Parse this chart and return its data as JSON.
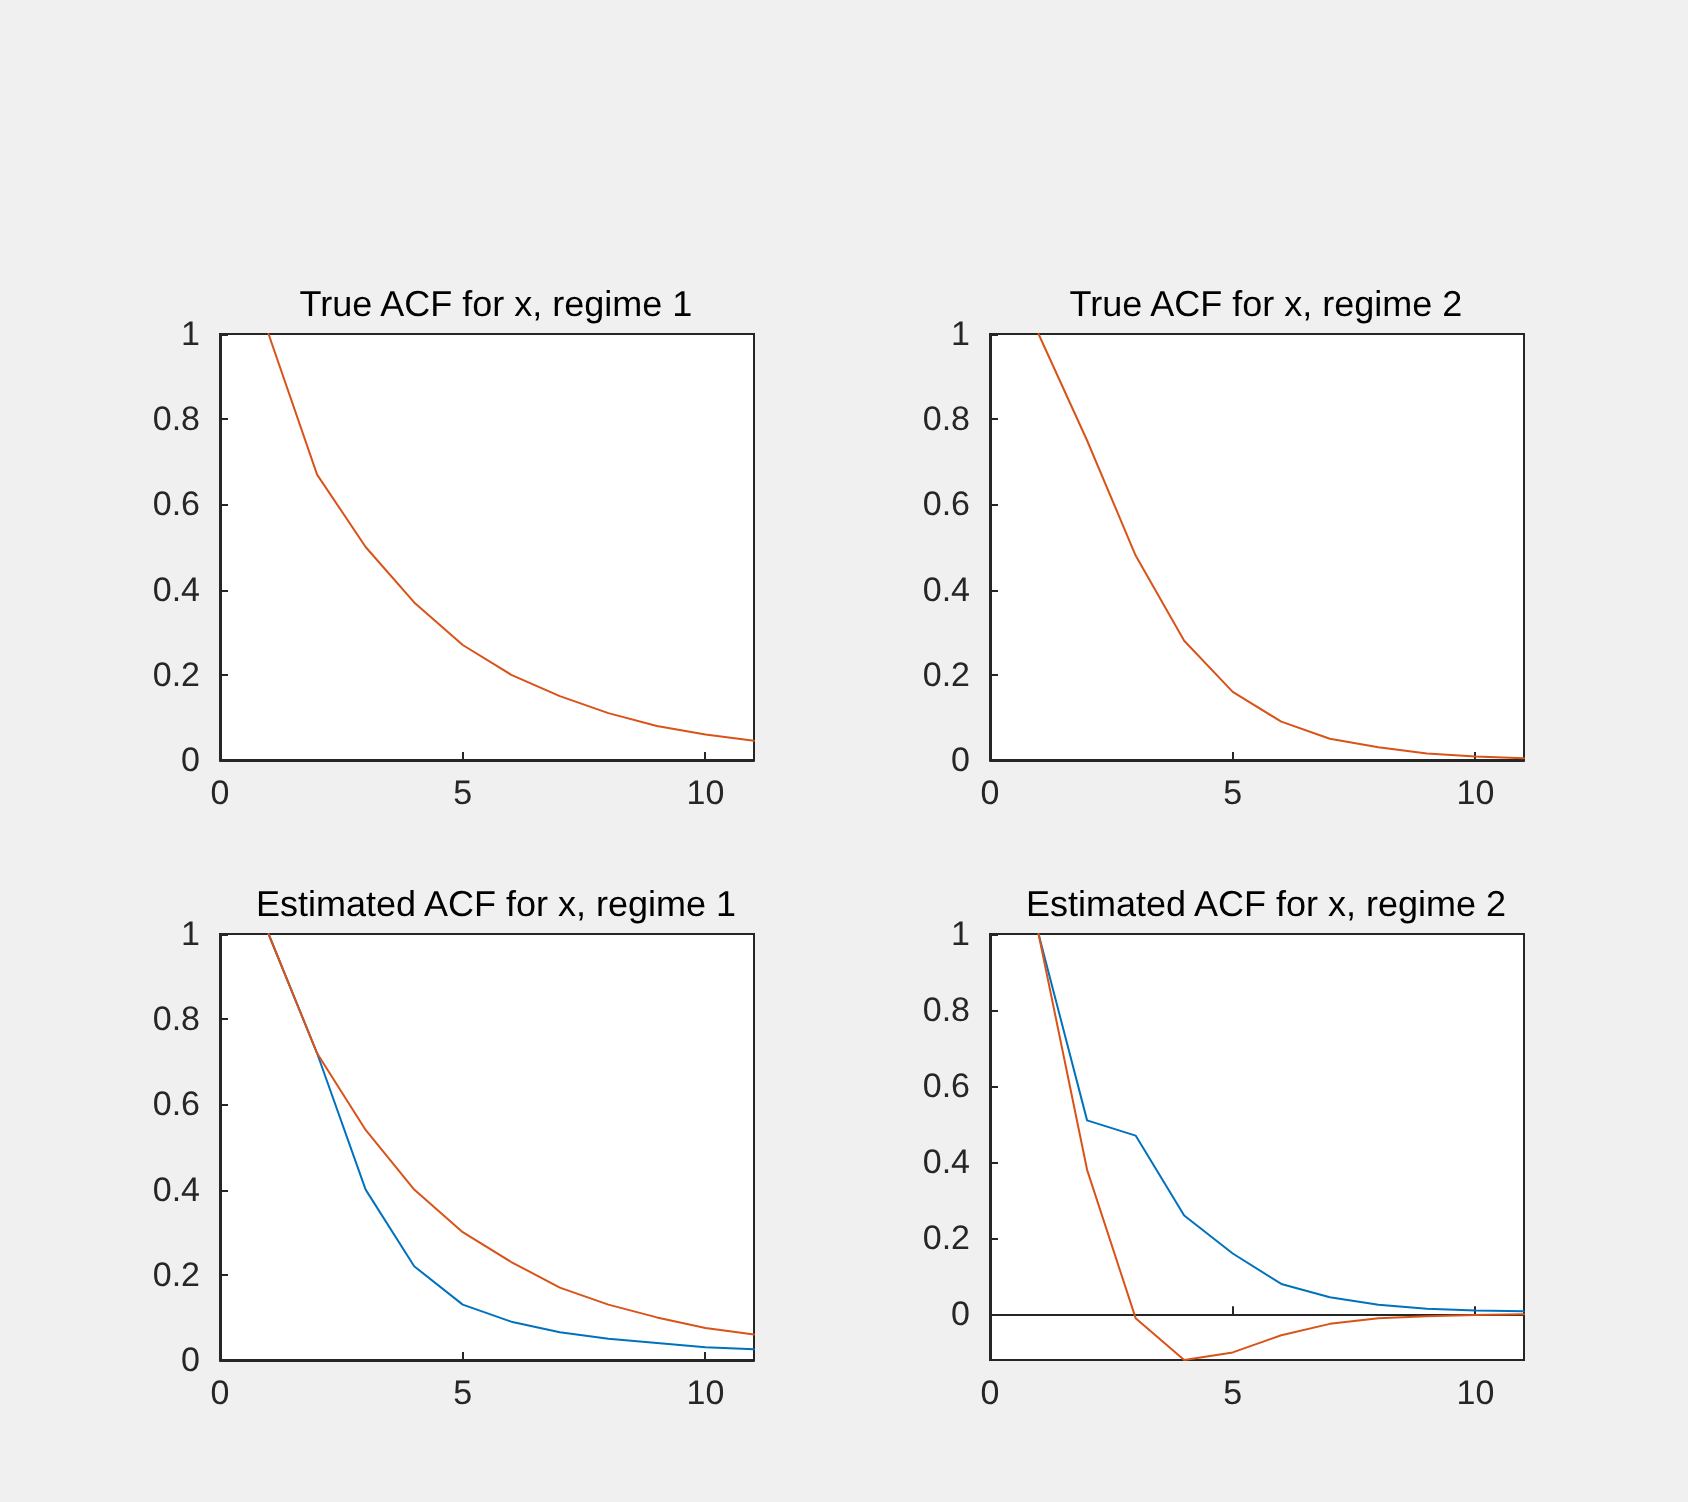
{
  "chart_data": [
    {
      "type": "line",
      "title": "True ACF for x, regime 1",
      "x": [
        1,
        2,
        3,
        4,
        5,
        6,
        7,
        8,
        9,
        10,
        11
      ],
      "xlim": [
        0,
        11
      ],
      "xticks": [
        0,
        5,
        10
      ],
      "ylim": [
        0,
        1
      ],
      "yticks": [
        0,
        0.2,
        0.4,
        0.6,
        0.8,
        1
      ],
      "series": [
        {
          "color": "#d95319",
          "values": [
            1,
            0.67,
            0.5,
            0.37,
            0.27,
            0.2,
            0.15,
            0.11,
            0.08,
            0.06,
            0.045
          ]
        }
      ]
    },
    {
      "type": "line",
      "title": "True ACF for x, regime 2",
      "x": [
        1,
        2,
        3,
        4,
        5,
        6,
        7,
        8,
        9,
        10,
        11
      ],
      "xlim": [
        0,
        11
      ],
      "xticks": [
        0,
        5,
        10
      ],
      "ylim": [
        0,
        1
      ],
      "yticks": [
        0,
        0.2,
        0.4,
        0.6,
        0.8,
        1
      ],
      "series": [
        {
          "color": "#d95319",
          "values": [
            1,
            0.75,
            0.48,
            0.28,
            0.16,
            0.09,
            0.05,
            0.03,
            0.015,
            0.008,
            0.004
          ]
        }
      ]
    },
    {
      "type": "line",
      "title": "Estimated ACF for x, regime 1",
      "x": [
        1,
        2,
        3,
        4,
        5,
        6,
        7,
        8,
        9,
        10,
        11
      ],
      "xlim": [
        0,
        11
      ],
      "xticks": [
        0,
        5,
        10
      ],
      "ylim": [
        0,
        1
      ],
      "yticks": [
        0,
        0.2,
        0.4,
        0.6,
        0.8,
        1
      ],
      "series": [
        {
          "color": "#0072bd",
          "values": [
            1,
            0.72,
            0.4,
            0.22,
            0.13,
            0.09,
            0.065,
            0.05,
            0.04,
            0.03,
            0.025
          ]
        },
        {
          "color": "#d95319",
          "values": [
            1,
            0.72,
            0.54,
            0.4,
            0.3,
            0.23,
            0.17,
            0.13,
            0.1,
            0.075,
            0.06
          ]
        }
      ]
    },
    {
      "type": "line",
      "title": "Estimated ACF for x, regime 2",
      "x": [
        1,
        2,
        3,
        4,
        5,
        6,
        7,
        8,
        9,
        10,
        11
      ],
      "xlim": [
        0,
        11
      ],
      "xticks": [
        0,
        5,
        10
      ],
      "ylim": [
        -0.12,
        1
      ],
      "yticks": [
        0,
        0.2,
        0.4,
        0.6,
        0.8,
        1
      ],
      "series": [
        {
          "color": "#0072bd",
          "values": [
            1,
            0.51,
            0.47,
            0.26,
            0.16,
            0.08,
            0.045,
            0.025,
            0.015,
            0.01,
            0.008
          ]
        },
        {
          "color": "#d95319",
          "values": [
            1,
            0.38,
            -0.01,
            -0.12,
            -0.1,
            -0.055,
            -0.025,
            -0.01,
            -0.005,
            -0.002,
            0
          ]
        }
      ]
    }
  ]
}
